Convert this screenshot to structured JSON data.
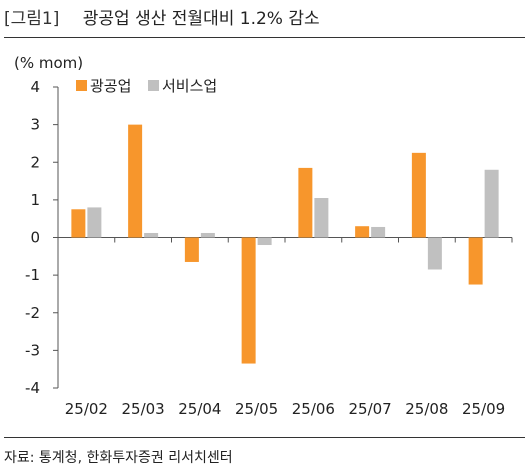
{
  "figure": {
    "label": "[그림1]",
    "title": "광공업 생산 전월대비 1.2% 감소",
    "source": "자료: 통계청, 한화투자증권 리서치센터"
  },
  "colors": {
    "series1": "#f7962c",
    "series2": "#c0c0c0",
    "axis": "#555555"
  },
  "chart_data": {
    "type": "bar",
    "unit": "(% mom)",
    "categories": [
      "25/02",
      "25/03",
      "25/04",
      "25/05",
      "25/06",
      "25/07",
      "25/08",
      "25/09"
    ],
    "series": [
      {
        "name": "광공업",
        "values": [
          0.75,
          3.0,
          -0.65,
          -3.35,
          1.85,
          0.3,
          2.25,
          -1.25
        ]
      },
      {
        "name": "서비스업",
        "values": [
          0.8,
          0.12,
          0.12,
          -0.2,
          1.05,
          0.28,
          -0.85,
          1.8
        ]
      }
    ],
    "ylim": [
      -4,
      4
    ],
    "yticks": [
      -4,
      -3,
      -2,
      -1,
      0,
      1,
      2,
      3,
      4
    ],
    "grid": false,
    "legend": "top-left"
  }
}
